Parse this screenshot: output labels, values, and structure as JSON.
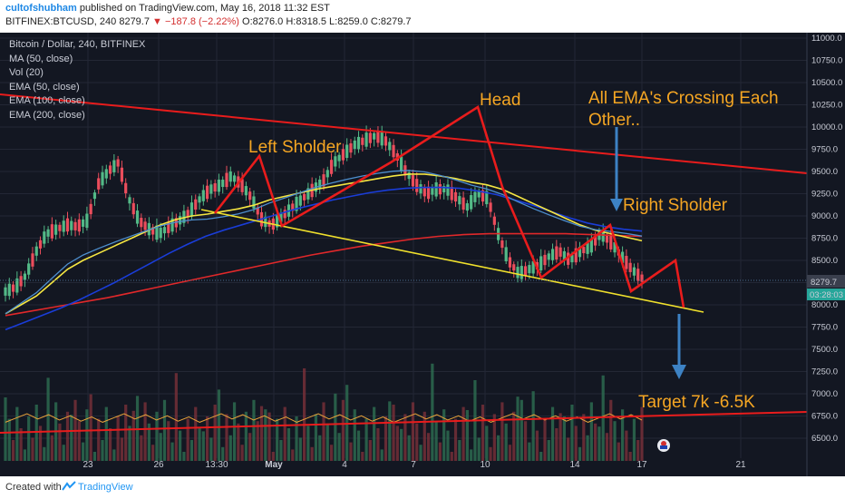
{
  "header": {
    "author": "cultofshubham",
    "published": "published on TradingView.com, May 16, 2018 11:32 EST",
    "symbol_line": "BITFINEX:BTCUSD, 240",
    "last_price": "8279.7",
    "change": "−187.8 (−2.22%)",
    "ohlc": "O:8276.0 H:8318.5 L:8259.0 C:8279.7"
  },
  "legend": {
    "title": "Bitcoin / Dollar, 240, BITFINEX",
    "items": [
      "MA (50, close)",
      "Vol (20)",
      "EMA (50, close)",
      "EMA (100, close)",
      "EMA (200, close)"
    ]
  },
  "price_tag": "8279.7",
  "countdown_tag": "03:28:03",
  "annotations": {
    "left_shoulder": "Left Sholder",
    "head": "Head",
    "ema_cross_line1": "All EMA's Crossing Each",
    "ema_cross_line2": "Other..",
    "right_shoulder": "Right Sholder",
    "target": "Target 7k -6.5K"
  },
  "footer": {
    "created_with": "Created with",
    "brand": "TradingView"
  },
  "colors": {
    "background": "#131722",
    "up": "#53b987",
    "down": "#eb4d5c",
    "ema50": "#f5e642",
    "ema100": "#1a3dd8",
    "ema200": "#e0282a",
    "ma50": "#4d8fcf",
    "trendline": "#e81c1c",
    "neckline": "#f0e02c",
    "annotation": "#f5a623",
    "arrow": "#3d82c4"
  },
  "chart_data": {
    "type": "candlestick",
    "title": "Bitcoin / Dollar, 240, BITFINEX",
    "y_axis_ticks": [
      11000,
      10750,
      10500,
      10250,
      10000,
      9750,
      9500,
      9250,
      9000,
      8750,
      8500,
      8250,
      8000,
      7750,
      7500,
      7250,
      7000,
      6750,
      6500
    ],
    "y_axis_labels": [
      "11000.0",
      "10750.0",
      "10500.0",
      "10250.0",
      "10000.0",
      "9750.0",
      "9500.0",
      "9250.0",
      "9000.0",
      "8750.0",
      "8500.0",
      "8250.0",
      "8000.0",
      "7750.0",
      "7500.0",
      "7250.0",
      "7000.0",
      "6750.0",
      "6500.0"
    ],
    "x_axis_labels": [
      "23",
      "26",
      "13:30",
      "May",
      "4",
      "7",
      "10",
      "14",
      "17",
      "21"
    ],
    "ylim": [
      6380,
      11050
    ],
    "close_series": [
      8150,
      8200,
      8330,
      8600,
      8800,
      8850,
      8900,
      8880,
      8950,
      9350,
      9500,
      9600,
      9200,
      8950,
      8850,
      8800,
      8880,
      8950,
      9050,
      9200,
      9300,
      9350,
      9450,
      9350,
      9200,
      8950,
      8900,
      9000,
      9100,
      9200,
      9300,
      9400,
      9600,
      9700,
      9800,
      9850,
      9900,
      9850,
      9700,
      9500,
      9350,
      9250,
      9300,
      9300,
      9200,
      9100,
      9250,
      9200,
      8800,
      8500,
      8350,
      8400,
      8450,
      8550,
      8600,
      8500,
      8600,
      8650,
      8800,
      8700,
      8550,
      8400,
      8300
    ],
    "ema50": [
      7900,
      8000,
      8100,
      8250,
      8400,
      8500,
      8580,
      8660,
      8740,
      8820,
      8900,
      8960,
      9000,
      9020,
      9050,
      9080,
      9120,
      9180,
      9220,
      9260,
      9300,
      9330,
      9360,
      9390,
      9420,
      9450,
      9470,
      9470,
      9450,
      9420,
      9380,
      9350,
      9300,
      9220,
      9140,
      9060,
      8980,
      8900,
      8840,
      8800,
      8760,
      8720
    ],
    "ema100": [
      7720,
      7800,
      7880,
      7960,
      8050,
      8150,
      8250,
      8360,
      8470,
      8580,
      8680,
      8770,
      8840,
      8900,
      8960,
      9020,
      9080,
      9130,
      9180,
      9220,
      9260,
      9290,
      9310,
      9320,
      9320,
      9310,
      9280,
      9240,
      9180,
      9120,
      9050,
      8980,
      8920,
      8880,
      8850,
      8830
    ],
    "ema200": [
      7880,
      7930,
      7980,
      8030,
      8080,
      8140,
      8200,
      8260,
      8320,
      8380,
      8440,
      8500,
      8560,
      8610,
      8660,
      8700,
      8740,
      8770,
      8790,
      8800,
      8800,
      8800,
      8800,
      8790,
      8780,
      8770
    ]
  }
}
